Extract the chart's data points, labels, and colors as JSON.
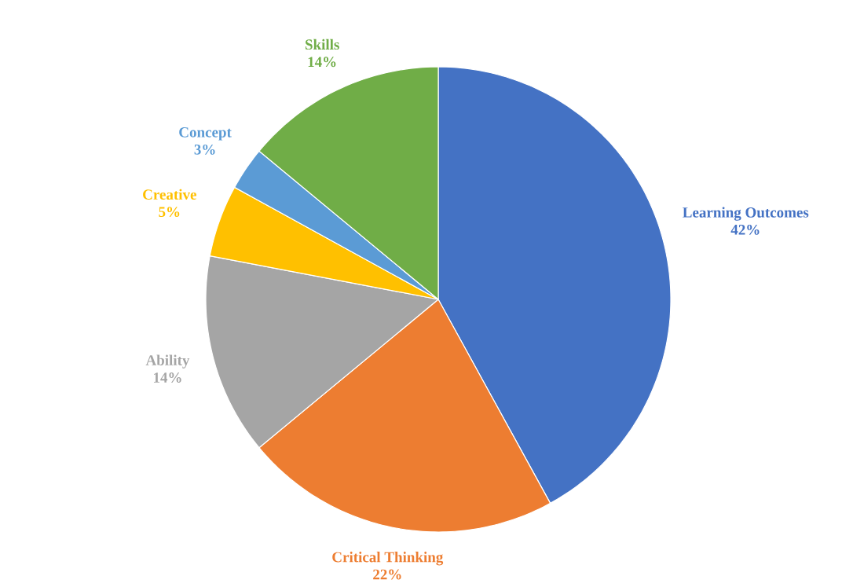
{
  "chart_data": {
    "type": "pie",
    "categories": [
      "Learning Outcomes",
      "Critical Thinking",
      "Ability",
      "Creative",
      "Concept",
      "Skills"
    ],
    "values": [
      42,
      22,
      14,
      5,
      3,
      14
    ],
    "colors": [
      "#4472c4",
      "#ed7d31",
      "#a5a5a5",
      "#ffc000",
      "#5b9bd5",
      "#70ad47"
    ],
    "value_labels": [
      "42%",
      "22%",
      "14%",
      "5%",
      "3%",
      "14%"
    ]
  }
}
